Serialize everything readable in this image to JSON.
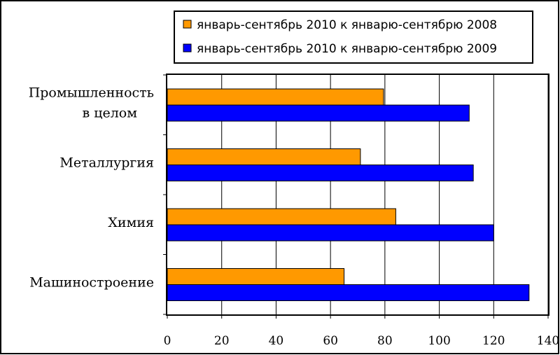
{
  "chart_data": {
    "type": "bar",
    "orientation": "horizontal",
    "categories": [
      "Промышленность\nв целом",
      "Металлургия",
      "Химия",
      "Машиностроение"
    ],
    "series": [
      {
        "name": "январь-сентябрь 2010 к январю-сентябрю 2008",
        "color": "#ff9900",
        "values": [
          79.5,
          71,
          84,
          65
        ]
      },
      {
        "name": "январь-сентябрь 2010 к январю-сентябрю 2009",
        "color": "#0000ff",
        "values": [
          111,
          112.5,
          120,
          133
        ]
      }
    ],
    "xlim": [
      0,
      140
    ],
    "xticks": [
      0,
      20,
      40,
      60,
      80,
      100,
      120,
      140
    ],
    "grid": true,
    "legend_position": "top-right"
  }
}
